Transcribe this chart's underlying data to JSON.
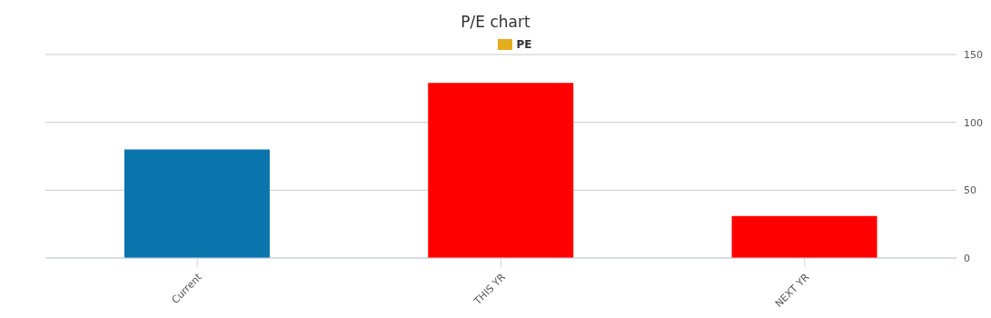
{
  "chart_data": {
    "type": "bar",
    "title": "P/E chart",
    "categories": [
      "Current",
      "THIS YR",
      "NEXT YR"
    ],
    "series": [
      {
        "name": "PE",
        "color": "#e5ac1c",
        "colors": [
          "#0a74ad",
          "#ff0000",
          "#ff0000"
        ],
        "values": [
          80,
          129,
          31
        ]
      }
    ],
    "ylim": [
      0,
      150
    ],
    "yticks": [
      0,
      50,
      100,
      150
    ],
    "grid": "y",
    "legend": "top"
  }
}
